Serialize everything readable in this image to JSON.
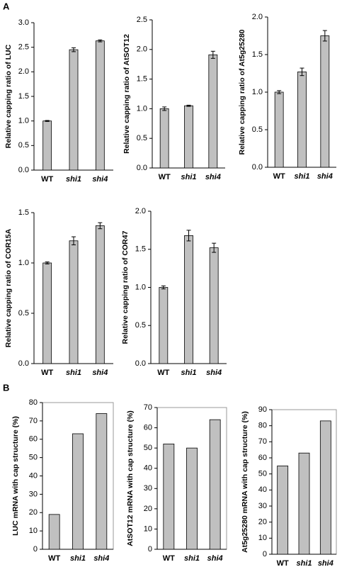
{
  "panel_labels": [
    "A",
    "B"
  ],
  "chart_data": [
    {
      "type": "bar",
      "y_label": "Relative capping ratio of LUC",
      "categories": [
        "WT",
        "shi1",
        "shi4"
      ],
      "values": [
        1.0,
        2.45,
        2.63
      ],
      "errors": [
        0.01,
        0.04,
        0.02
      ],
      "color": "#c0c0c0",
      "frame": false,
      "ylim": [
        0,
        3
      ],
      "yticks": [
        {
          "value": 0,
          "label": "0.0"
        },
        {
          "value": 0.5,
          "label": "0.5"
        },
        {
          "value": 1,
          "label": "1.0"
        },
        {
          "value": 1.5,
          "label": "1.5"
        },
        {
          "value": 2,
          "label": "2.0"
        },
        {
          "value": 2.5,
          "label": "2.5"
        },
        {
          "value": 3,
          "label": "3.0"
        }
      ]
    },
    {
      "type": "bar",
      "y_label": "Relative capping ratio of AtSOT12",
      "categories": [
        "WT",
        "shi1",
        "shi4"
      ],
      "values": [
        1.0,
        1.05,
        1.91
      ],
      "errors": [
        0.03,
        0.01,
        0.06
      ],
      "color": "#c0c0c0",
      "frame": false,
      "ylim": [
        0,
        2.5
      ],
      "yticks": [
        {
          "value": 0,
          "label": "0.0"
        },
        {
          "value": 0.5,
          "label": "0.5"
        },
        {
          "value": 1,
          "label": "1.0"
        },
        {
          "value": 1.5,
          "label": "1.5"
        },
        {
          "value": 2,
          "label": "2.0"
        },
        {
          "value": 2.5,
          "label": "2.5"
        }
      ]
    },
    {
      "type": "bar",
      "y_label": "Relative capping ratio of At5g25280",
      "categories": [
        "WT",
        "shi1",
        "shi4"
      ],
      "values": [
        1.0,
        1.27,
        1.75
      ],
      "errors": [
        0.02,
        0.05,
        0.07
      ],
      "color": "#c0c0c0",
      "frame": false,
      "ylim": [
        0,
        2
      ],
      "yticks": [
        {
          "value": 0,
          "label": "0.0"
        },
        {
          "value": 0.5,
          "label": "0.5"
        },
        {
          "value": 1,
          "label": "1.0"
        },
        {
          "value": 1.5,
          "label": "1.5"
        },
        {
          "value": 2,
          "label": "2.0"
        }
      ]
    },
    {
      "type": "bar",
      "y_label": "Relative capping ratio of COR15A",
      "categories": [
        "WT",
        "shi1",
        "shi4"
      ],
      "values": [
        1.0,
        1.22,
        1.37
      ],
      "errors": [
        0.01,
        0.04,
        0.03
      ],
      "color": "#c0c0c0",
      "frame": false,
      "ylim": [
        0,
        1.5
      ],
      "yticks": [
        {
          "value": 0,
          "label": "0.0"
        },
        {
          "value": 0.5,
          "label": "0.5"
        },
        {
          "value": 1,
          "label": "1.0"
        },
        {
          "value": 1.5,
          "label": "1.5"
        }
      ]
    },
    {
      "type": "bar",
      "y_label": "Relative capping ratio of COR47",
      "categories": [
        "WT",
        "shi1",
        "shi4"
      ],
      "values": [
        1.0,
        1.68,
        1.52
      ],
      "errors": [
        0.02,
        0.07,
        0.06
      ],
      "color": "#c0c0c0",
      "frame": false,
      "ylim": [
        0,
        2
      ],
      "yticks": [
        {
          "value": 0,
          "label": "0.0"
        },
        {
          "value": 0.5,
          "label": "0.5"
        },
        {
          "value": 1,
          "label": "1.0"
        },
        {
          "value": 1.5,
          "label": "1.5"
        },
        {
          "value": 2,
          "label": "2.0"
        }
      ]
    },
    {
      "type": "bar",
      "y_label": "LUC mRNA with cap structure (%)",
      "categories": [
        "WT",
        "shi1",
        "shi4"
      ],
      "values": [
        19,
        63,
        74
      ],
      "color": "#c0c0c0",
      "frame": true,
      "ylim": [
        0,
        80
      ],
      "yticks": [
        0,
        10,
        20,
        30,
        40,
        50,
        60,
        70,
        80
      ]
    },
    {
      "type": "bar",
      "y_label": "AtSOT12 mRNA with cap structure (%)",
      "categories": [
        "WT",
        "shi1",
        "shi4"
      ],
      "values": [
        52,
        50,
        64
      ],
      "color": "#c0c0c0",
      "frame": true,
      "ylim": [
        0,
        70
      ],
      "yticks": [
        0,
        10,
        20,
        30,
        40,
        50,
        60,
        70
      ]
    },
    {
      "type": "bar",
      "y_label": "At5g25280 mRNA with cap structure (%)",
      "categories": [
        "WT",
        "shi1",
        "shi4"
      ],
      "values": [
        55,
        63,
        83
      ],
      "color": "#c0c0c0",
      "frame": true,
      "ylim": [
        0,
        90
      ],
      "yticks": [
        0,
        10,
        20,
        30,
        40,
        50,
        60,
        70,
        80,
        90
      ]
    }
  ]
}
